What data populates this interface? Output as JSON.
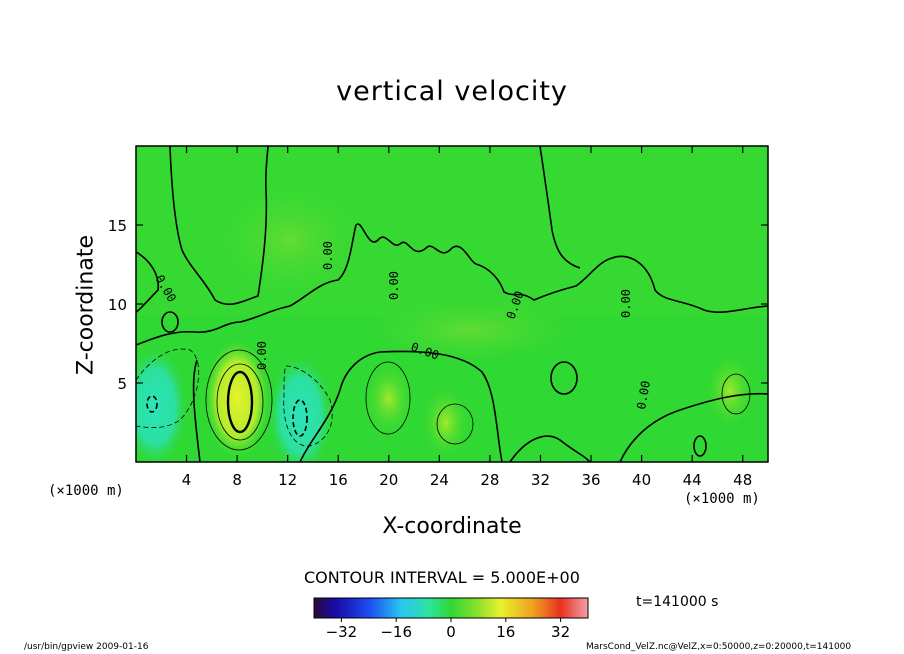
{
  "chart_data": {
    "type": "heatmap",
    "title": "vertical velocity",
    "xlabel": "X-coordinate",
    "ylabel": "Z-coordinate",
    "x_unit_label": "(×1000 m)",
    "xlim": [
      0,
      50
    ],
    "ylim": [
      0,
      20
    ],
    "x_ticks": [
      4,
      8,
      12,
      16,
      20,
      24,
      28,
      32,
      36,
      40,
      44,
      48
    ],
    "y_ticks": [
      5,
      10,
      15
    ],
    "contour_interval_label": "CONTOUR INTERVAL = 5.000E+00",
    "contour_line_label": "0.00",
    "colorbar": {
      "range": [
        -40,
        40
      ],
      "ticks": [
        -32,
        -16,
        0,
        16,
        32
      ]
    },
    "time_label": "t=141000 s",
    "features": [
      {
        "x": 8,
        "z": 4,
        "value": 15,
        "kind": "updraft"
      },
      {
        "x": 13,
        "z": 3,
        "value": -10,
        "kind": "downdraft"
      },
      {
        "x": 1.5,
        "z": 3.5,
        "value": -10,
        "kind": "downdraft"
      },
      {
        "x": 20,
        "z": 4,
        "value": 8,
        "kind": "updraft"
      },
      {
        "x": 24.5,
        "z": 2.5,
        "value": 7,
        "kind": "updraft"
      },
      {
        "x": 47,
        "z": 4.5,
        "value": 7,
        "kind": "updraft"
      }
    ]
  },
  "footer": {
    "left": "/usr/bin/gpview   2009-01-16",
    "right": "MarsCond_VelZ.nc@VelZ,x=0:50000,z=0:20000,t=141000"
  },
  "colors": {
    "background_field": "#2fd832",
    "positive": "#d8f22a",
    "negative": "#2ee2a0"
  }
}
